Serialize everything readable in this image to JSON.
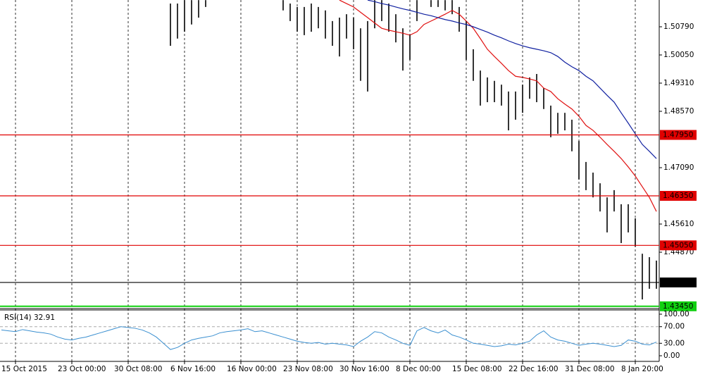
{
  "chart_data": {
    "type": "ohlc",
    "categories": [
      "15 Oct 2015",
      null,
      null,
      null,
      null,
      null,
      null,
      null,
      "23 Oct 00:00",
      null,
      null,
      null,
      null,
      null,
      null,
      null,
      "30 Oct 08:00",
      null,
      null,
      null,
      null,
      null,
      null,
      null,
      "6 Nov 16:00",
      null,
      null,
      null,
      null,
      null,
      null,
      null,
      "16 Nov 00:00",
      null,
      null,
      null,
      null,
      null,
      null,
      null,
      "23 Nov 08:00",
      null,
      null,
      null,
      null,
      null,
      null,
      null,
      "30 Nov 16:00",
      null,
      null,
      null,
      null,
      null,
      null,
      null,
      "8 Dec 00:00",
      null,
      null,
      null,
      null,
      null,
      null,
      null,
      "15 Dec 08:00",
      null,
      null,
      null,
      null,
      null,
      null,
      null,
      "22 Dec 16:00",
      null,
      null,
      null,
      null,
      null,
      null,
      null,
      "31 Dec 08:00",
      null,
      null,
      null,
      null,
      null,
      null,
      null,
      "8 Jan 20:00",
      null,
      null,
      null,
      null,
      null
    ],
    "high": [
      null,
      null,
      null,
      null,
      null,
      null,
      null,
      null,
      null,
      null,
      null,
      null,
      null,
      null,
      null,
      null,
      null,
      null,
      null,
      null,
      null,
      null,
      null,
      null,
      1.514,
      1.514,
      1.5149,
      1.5149,
      1.5149,
      1.5149,
      null,
      null,
      null,
      null,
      null,
      null,
      null,
      null,
      null,
      null,
      1.5149,
      1.514,
      1.5131,
      1.5131,
      1.514,
      1.5131,
      1.5122,
      1.5094,
      1.5103,
      1.5112,
      1.5103,
      1.5075,
      1.5094,
      1.5149,
      1.5149,
      1.514,
      1.5112,
      1.5075,
      1.5057,
      1.5149,
      null,
      1.5149,
      1.5149,
      1.5149,
      1.5149,
      1.5131,
      1.5094,
      1.502,
      1.4964,
      1.4946,
      1.4937,
      1.4927,
      1.4909,
      1.4909,
      1.4927,
      1.4946,
      1.4955,
      1.4918,
      1.4872,
      1.4853,
      1.4853,
      1.4835,
      1.4779,
      1.4724,
      1.4696,
      1.4668,
      1.4631,
      1.465,
      1.4613,
      1.4613,
      1.4576,
      1.4483,
      1.4474,
      1.4465
    ],
    "low": [
      null,
      null,
      null,
      null,
      null,
      null,
      null,
      null,
      null,
      null,
      null,
      null,
      null,
      null,
      null,
      null,
      null,
      null,
      null,
      null,
      null,
      null,
      null,
      null,
      1.5029,
      1.5048,
      1.5066,
      1.5085,
      1.5103,
      1.5131,
      null,
      null,
      null,
      null,
      null,
      null,
      null,
      null,
      null,
      null,
      1.5122,
      1.5094,
      1.5066,
      1.5057,
      1.5066,
      1.5075,
      1.5048,
      1.5029,
      1.5001,
      1.5048,
      1.502,
      1.4937,
      1.4909,
      1.5075,
      1.5094,
      1.5066,
      1.5038,
      1.4964,
      1.4992,
      1.5094,
      null,
      1.5131,
      1.5131,
      1.5122,
      1.5112,
      1.5066,
      1.4992,
      1.4937,
      1.4872,
      1.4881,
      1.4881,
      1.4872,
      1.4807,
      1.4835,
      1.4853,
      1.489,
      1.4881,
      1.4863,
      1.4789,
      1.4798,
      1.4807,
      1.4752,
      1.4678,
      1.465,
      1.4631,
      1.4594,
      1.4539,
      1.4594,
      1.4511,
      1.4539,
      1.4502,
      1.4363,
      1.4391,
      1.4391
    ],
    "bar_color": "#000000",
    "series": [
      {
        "color": "#e01010",
        "values": [
          null,
          null,
          null,
          null,
          null,
          null,
          null,
          null,
          null,
          null,
          null,
          null,
          null,
          null,
          null,
          null,
          null,
          null,
          null,
          null,
          null,
          null,
          null,
          null,
          null,
          null,
          null,
          null,
          null,
          null,
          null,
          null,
          null,
          null,
          null,
          null,
          null,
          null,
          null,
          null,
          null,
          null,
          null,
          null,
          null,
          null,
          null,
          null,
          1.5149,
          1.514,
          1.5131,
          1.5117,
          1.5103,
          1.5089,
          1.5075,
          1.507,
          1.5066,
          1.5062,
          1.5057,
          1.5066,
          1.5085,
          1.5094,
          1.5103,
          1.5112,
          1.5122,
          1.5112,
          1.5094,
          1.5075,
          1.5048,
          1.502,
          1.5001,
          1.4983,
          1.4964,
          1.4949,
          1.4946,
          1.4942,
          1.4937,
          1.4918,
          1.4909,
          1.489,
          1.4876,
          1.4863,
          1.4844,
          1.482,
          1.4807,
          1.4789,
          1.477,
          1.4752,
          1.4733,
          1.4711,
          1.4687,
          1.4659,
          1.4631,
          1.4594
        ]
      },
      {
        "color": "#1020a0",
        "values": [
          null,
          null,
          null,
          null,
          null,
          null,
          null,
          null,
          null,
          null,
          null,
          null,
          null,
          null,
          null,
          null,
          null,
          null,
          null,
          null,
          null,
          null,
          null,
          null,
          null,
          null,
          null,
          null,
          null,
          null,
          null,
          null,
          null,
          null,
          null,
          null,
          null,
          null,
          null,
          null,
          null,
          null,
          null,
          null,
          null,
          null,
          null,
          null,
          null,
          null,
          null,
          null,
          1.5149,
          1.5145,
          1.514,
          1.5136,
          1.5131,
          1.5126,
          1.5122,
          1.5117,
          1.5112,
          1.5108,
          1.5103,
          1.5098,
          1.5094,
          1.5089,
          1.5085,
          1.5079,
          1.5072,
          1.5065,
          1.5057,
          1.505,
          1.5042,
          1.5035,
          1.5029,
          1.5024,
          1.502,
          1.5016,
          1.5011,
          1.5001,
          1.4986,
          1.4974,
          1.4964,
          1.4949,
          1.4937,
          1.4918,
          1.4899,
          1.4881,
          1.4853,
          1.4826,
          1.4798,
          1.477,
          1.4752,
          1.4733
        ]
      }
    ],
    "ylim": [
      1.43409,
      1.51493
    ],
    "yticks": [
      {
        "value": 1.5079,
        "label": "1.50790"
      },
      {
        "value": 1.5005,
        "label": "1.50050"
      },
      {
        "value": 1.4931,
        "label": "1.49310"
      },
      {
        "value": 1.4857,
        "label": "1.48570"
      },
      {
        "value": 1.4709,
        "label": "1.47090"
      },
      {
        "value": 1.4561,
        "label": "1.45610"
      },
      {
        "value": 1.4487,
        "label": "1.44870"
      }
    ],
    "levels": [
      {
        "value": 1.4795,
        "label": "1.47950",
        "color": "#e00000"
      },
      {
        "value": 1.4635,
        "label": "1.46350",
        "color": "#e00000"
      },
      {
        "value": 1.4505,
        "label": "1.45050",
        "color": "#e00000"
      },
      {
        "value": 1.44076,
        "label": "1.44076",
        "color": "#000000"
      },
      {
        "value": 1.4345,
        "label": "1.43450",
        "color": "#10d010"
      }
    ],
    "grid": true,
    "indicator": {
      "title": "RSI(14) 32.91",
      "color": "#3a8fd0",
      "ylim": [
        0,
        100
      ],
      "yticks": [
        {
          "value": 100,
          "label": "100.00"
        },
        {
          "value": 70,
          "label": "70.00"
        },
        {
          "value": 30,
          "label": "30.00"
        },
        {
          "value": 0,
          "label": "0.00"
        }
      ],
      "levels": [
        70,
        30
      ],
      "values": [
        62,
        60,
        58,
        63,
        60,
        57,
        55,
        52,
        45,
        40,
        38,
        42,
        45,
        50,
        55,
        60,
        65,
        70,
        68,
        66,
        62,
        55,
        45,
        30,
        15,
        20,
        30,
        38,
        42,
        45,
        48,
        55,
        58,
        60,
        62,
        65,
        58,
        60,
        55,
        50,
        45,
        40,
        35,
        32,
        30,
        32,
        28,
        30,
        28,
        26,
        22,
        35,
        45,
        58,
        55,
        45,
        38,
        30,
        25,
        60,
        68,
        60,
        55,
        62,
        50,
        45,
        38,
        30,
        28,
        25,
        22,
        24,
        28,
        26,
        30,
        35,
        50,
        60,
        45,
        38,
        35,
        30,
        25,
        28,
        30,
        28,
        25,
        22,
        25,
        38,
        35,
        28,
        26,
        32.91
      ]
    }
  }
}
